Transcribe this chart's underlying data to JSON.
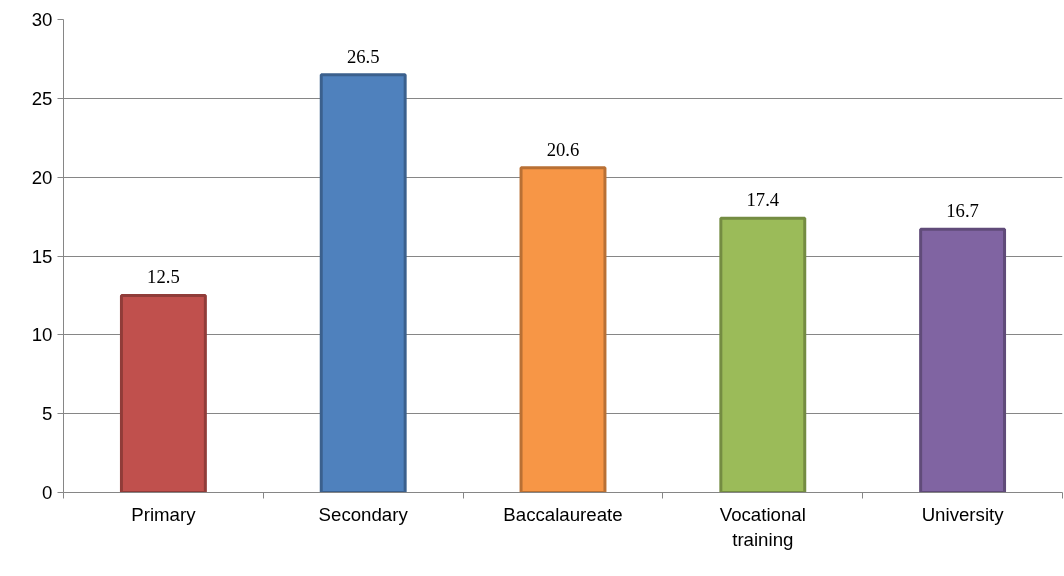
{
  "chart_data": {
    "type": "bar",
    "categories": [
      "Primary",
      "Secondary",
      "Baccalaureate",
      "Vocational training",
      "University"
    ],
    "values": [
      12.5,
      26.5,
      20.6,
      17.4,
      16.7
    ],
    "colors": [
      "#c0504d",
      "#4f81bd",
      "#f79646",
      "#9bbb59",
      "#8064a2"
    ],
    "ylim": [
      0,
      30
    ],
    "yticks": [
      0,
      5,
      10,
      15,
      20,
      25,
      30
    ],
    "grid": "y",
    "data_labels": true
  }
}
